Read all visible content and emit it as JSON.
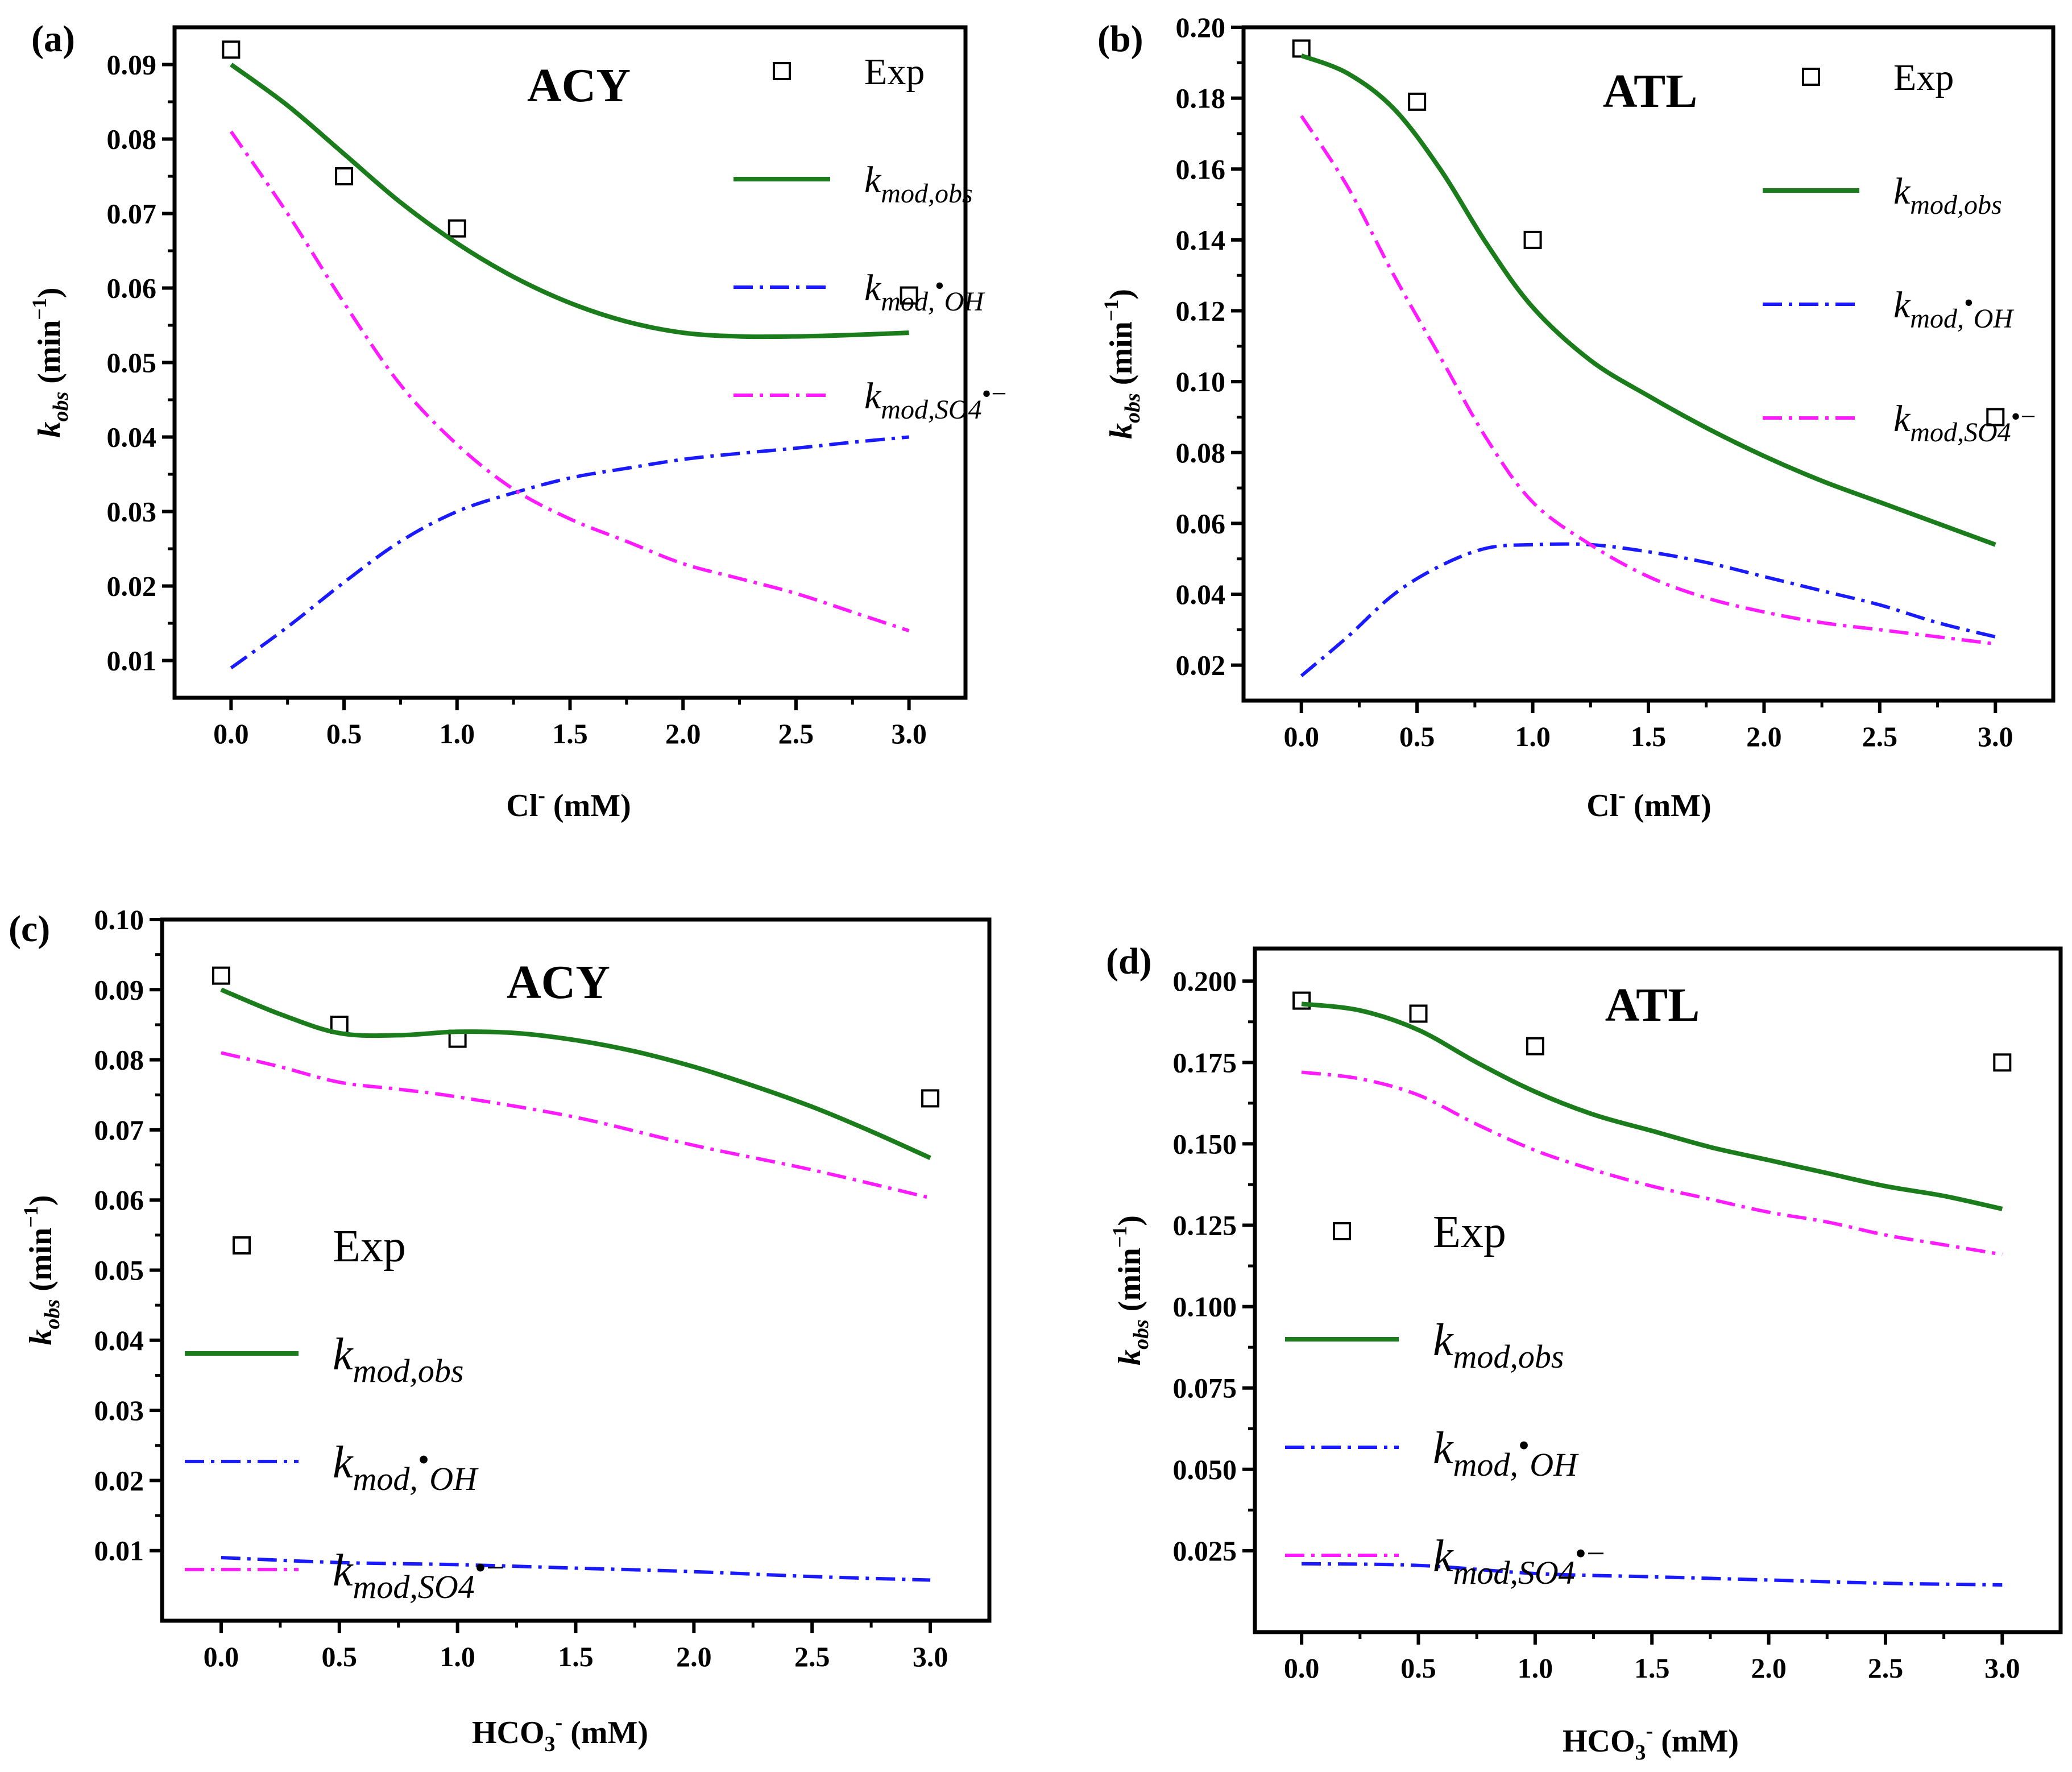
{
  "figure": {
    "description_free": true
  },
  "chart_data": [
    {
      "id": "a",
      "type": "line",
      "panel_label": "(a)",
      "title": "ACY",
      "xlabel_main": "Cl",
      "xlabel_sup": "-",
      "xlabel_rest": " (mM)",
      "ylabel_main": "k",
      "ylabel_sub": "obs",
      "ylabel_rest": " (min",
      "ylabel_sup": "−1",
      "ylabel_end": ")",
      "xlim": [
        -0.25,
        3.25
      ],
      "ylim": [
        0.005,
        0.095
      ],
      "xticks": [
        0.0,
        0.5,
        1.0,
        1.5,
        2.0,
        2.5,
        3.0
      ],
      "xtick_labels": [
        "0.0",
        "0.5",
        "1.0",
        "1.5",
        "2.0",
        "2.5",
        "3.0"
      ],
      "yticks": [
        0.01,
        0.02,
        0.03,
        0.04,
        0.05,
        0.06,
        0.07,
        0.08,
        0.09
      ],
      "ytick_labels": [
        "0.01",
        "0.02",
        "0.03",
        "0.04",
        "0.05",
        "0.06",
        "0.07",
        "0.08",
        "0.09"
      ],
      "legend_position": "top-right",
      "series": [
        {
          "name": "Exp",
          "kind": "marker",
          "x": [
            0.0,
            0.5,
            1.0,
            3.0
          ],
          "y": [
            0.092,
            0.075,
            0.068,
            0.059
          ]
        },
        {
          "name": "k_mod,obs",
          "kind": "solid",
          "color": "#1b7c1b",
          "x": [
            0.0,
            0.25,
            0.5,
            0.75,
            1.0,
            1.25,
            1.5,
            1.75,
            2.0,
            2.25,
            2.5,
            2.75,
            3.0
          ],
          "y": [
            0.09,
            0.0845,
            0.078,
            0.0715,
            0.066,
            0.0615,
            0.058,
            0.0555,
            0.054,
            0.0535,
            0.0535,
            0.0537,
            0.054
          ]
        },
        {
          "name": "k_mod,•OH",
          "kind": "dashdot",
          "color": "#1a1aff",
          "x": [
            0.0,
            0.25,
            0.5,
            0.75,
            1.0,
            1.25,
            1.5,
            1.75,
            2.0,
            2.25,
            2.5,
            2.75,
            3.0
          ],
          "y": [
            0.009,
            0.0145,
            0.0205,
            0.026,
            0.03,
            0.0325,
            0.0345,
            0.0358,
            0.037,
            0.0378,
            0.0385,
            0.0393,
            0.04
          ]
        },
        {
          "name": "k_mod,SO4•−",
          "kind": "dashdot",
          "color": "#ff1aff",
          "x": [
            0.0,
            0.25,
            0.5,
            0.75,
            1.0,
            1.25,
            1.5,
            1.75,
            2.0,
            2.25,
            2.5,
            2.75,
            3.0
          ],
          "y": [
            0.081,
            0.07,
            0.058,
            0.047,
            0.039,
            0.033,
            0.029,
            0.026,
            0.023,
            0.021,
            0.019,
            0.0165,
            0.014
          ]
        }
      ],
      "legend": [
        {
          "label": "Exp"
        },
        {
          "label_main": "k",
          "label_sub": "mod,obs"
        },
        {
          "label_main": "k",
          "label_sub": "mod,",
          "label_sup": "•",
          "label_sub2": "OH"
        },
        {
          "label_main": "k",
          "label_sub": "mod,SO4",
          "label_sup": "•−"
        }
      ]
    },
    {
      "id": "b",
      "type": "line",
      "panel_label": "(b)",
      "title": "ATL",
      "xlabel_main": "Cl",
      "xlabel_sup": "-",
      "xlabel_rest": " (mM)",
      "ylabel_main": "k",
      "ylabel_sub": "obs",
      "ylabel_rest": " (min",
      "ylabel_sup": "−1",
      "ylabel_end": ")",
      "xlim": [
        -0.25,
        3.25
      ],
      "ylim": [
        0.01,
        0.2
      ],
      "xticks": [
        0.0,
        0.5,
        1.0,
        1.5,
        2.0,
        2.5,
        3.0
      ],
      "xtick_labels": [
        "0.0",
        "0.5",
        "1.0",
        "1.5",
        "2.0",
        "2.5",
        "3.0"
      ],
      "yticks": [
        0.02,
        0.04,
        0.06,
        0.08,
        0.1,
        0.12,
        0.14,
        0.16,
        0.18,
        0.2
      ],
      "ytick_labels": [
        "0.02",
        "0.04",
        "0.06",
        "0.08",
        "0.10",
        "0.12",
        "0.14",
        "0.16",
        "0.18",
        "0.20"
      ],
      "legend_position": "top-right",
      "series": [
        {
          "name": "Exp",
          "kind": "marker",
          "x": [
            0.0,
            0.5,
            1.0,
            3.0
          ],
          "y": [
            0.194,
            0.179,
            0.14,
            0.09
          ]
        },
        {
          "name": "k_mod,obs",
          "kind": "solid",
          "color": "#1b7c1b",
          "x": [
            0.0,
            0.2,
            0.4,
            0.6,
            0.8,
            1.0,
            1.25,
            1.5,
            1.75,
            2.0,
            2.25,
            2.5,
            2.75,
            3.0
          ],
          "y": [
            0.192,
            0.187,
            0.177,
            0.16,
            0.139,
            0.121,
            0.106,
            0.096,
            0.087,
            0.079,
            0.072,
            0.066,
            0.06,
            0.054
          ]
        },
        {
          "name": "k_mod,•OH",
          "kind": "dashdot",
          "color": "#1a1aff",
          "x": [
            0.0,
            0.2,
            0.4,
            0.6,
            0.8,
            1.0,
            1.25,
            1.5,
            1.75,
            2.0,
            2.25,
            2.5,
            2.75,
            3.0
          ],
          "y": [
            0.017,
            0.028,
            0.04,
            0.048,
            0.053,
            0.054,
            0.054,
            0.052,
            0.049,
            0.045,
            0.041,
            0.037,
            0.032,
            0.028
          ]
        },
        {
          "name": "k_mod,SO4•−",
          "kind": "dashdot",
          "color": "#ff1aff",
          "x": [
            0.0,
            0.2,
            0.4,
            0.6,
            0.8,
            1.0,
            1.25,
            1.5,
            1.75,
            2.0,
            2.25,
            2.5,
            2.75,
            3.0
          ],
          "y": [
            0.175,
            0.155,
            0.13,
            0.107,
            0.084,
            0.066,
            0.054,
            0.045,
            0.039,
            0.035,
            0.032,
            0.03,
            0.028,
            0.026
          ]
        }
      ],
      "legend": [
        {
          "label": "Exp"
        },
        {
          "label_main": "k",
          "label_sub": "mod,obs"
        },
        {
          "label_main": "k",
          "label_sub": "mod,",
          "label_sup": "•",
          "label_sub2": "OH"
        },
        {
          "label_main": "k",
          "label_sub": "mod,SO4",
          "label_sup": "•−"
        }
      ]
    },
    {
      "id": "c",
      "type": "line",
      "panel_label": "(c)",
      "title": "ACY",
      "xlabel_main": "HCO",
      "xlabel_sub": "3",
      "xlabel_sup": "-",
      "xlabel_rest": " (mM)",
      "ylabel_main": "k",
      "ylabel_sub": "obs",
      "ylabel_rest": " (min",
      "ylabel_sup": "−1",
      "ylabel_end": ")",
      "xlim": [
        -0.25,
        3.25
      ],
      "ylim": [
        0.0,
        0.1
      ],
      "xticks": [
        0.0,
        0.5,
        1.0,
        1.5,
        2.0,
        2.5,
        3.0
      ],
      "xtick_labels": [
        "0.0",
        "0.5",
        "1.0",
        "1.5",
        "2.0",
        "2.5",
        "3.0"
      ],
      "yticks": [
        0.01,
        0.02,
        0.03,
        0.04,
        0.05,
        0.06,
        0.07,
        0.08,
        0.09,
        0.1
      ],
      "ytick_labels": [
        "0.01",
        "0.02",
        "0.03",
        "0.04",
        "0.05",
        "0.06",
        "0.07",
        "0.08",
        "0.09",
        "0.10"
      ],
      "legend_position": "middle-left",
      "series": [
        {
          "name": "Exp",
          "kind": "marker",
          "x": [
            0.0,
            0.5,
            1.0,
            3.0
          ],
          "y": [
            0.092,
            0.085,
            0.083,
            0.0745
          ]
        },
        {
          "name": "k_mod,obs",
          "kind": "solid",
          "color": "#1b7c1b",
          "x": [
            0.0,
            0.25,
            0.5,
            0.75,
            1.0,
            1.25,
            1.5,
            1.75,
            2.0,
            2.25,
            2.5,
            2.75,
            3.0
          ],
          "y": [
            0.09,
            0.0865,
            0.0838,
            0.0835,
            0.084,
            0.0838,
            0.0828,
            0.0812,
            0.079,
            0.0763,
            0.0733,
            0.0698,
            0.066
          ]
        },
        {
          "name": "k_mod,•OH",
          "kind": "dashdot",
          "color": "#1a1aff",
          "x": [
            0.0,
            0.5,
            1.0,
            1.5,
            2.0,
            2.5,
            3.0
          ],
          "y": [
            0.009,
            0.0083,
            0.008,
            0.0075,
            0.007,
            0.0063,
            0.0058
          ]
        },
        {
          "name": "k_mod,SO4•−",
          "kind": "dashdot",
          "color": "#ff1aff",
          "x": [
            0.0,
            0.25,
            0.5,
            0.75,
            1.0,
            1.5,
            2.0,
            2.5,
            3.0
          ],
          "y": [
            0.081,
            0.079,
            0.0768,
            0.0758,
            0.0747,
            0.0718,
            0.0678,
            0.0643,
            0.0603
          ]
        }
      ],
      "legend": [
        {
          "label": "Exp"
        },
        {
          "label_main": "k",
          "label_sub": "mod,obs"
        },
        {
          "label_main": "k",
          "label_sub": "mod,",
          "label_sup": "•",
          "label_sub2": "OH"
        },
        {
          "label_main": "k",
          "label_sub": "mod,SO4",
          "label_sup": "•−"
        }
      ]
    },
    {
      "id": "d",
      "type": "line",
      "panel_label": "(d)",
      "title": "ATL",
      "xlabel_main": "HCO",
      "xlabel_sub": "3",
      "xlabel_sup": "-",
      "xlabel_rest": " (mM)",
      "ylabel_main": "k",
      "ylabel_sub": "obs",
      "ylabel_rest": " (min",
      "ylabel_sup": "−1",
      "ylabel_end": ")",
      "xlim": [
        -0.2,
        3.25
      ],
      "ylim": [
        0.0,
        0.21
      ],
      "xticks": [
        0.0,
        0.5,
        1.0,
        1.5,
        2.0,
        2.5,
        3.0
      ],
      "xtick_labels": [
        "0.0",
        "0.5",
        "1.0",
        "1.5",
        "2.0",
        "2.5",
        "3.0"
      ],
      "yticks": [
        0.025,
        0.05,
        0.075,
        0.1,
        0.125,
        0.15,
        0.175,
        0.2
      ],
      "ytick_labels": [
        "0.025",
        "0.050",
        "0.075",
        "0.100",
        "0.125",
        "0.150",
        "0.175",
        "0.200"
      ],
      "legend_position": "middle-left",
      "series": [
        {
          "name": "Exp",
          "kind": "marker",
          "x": [
            0.0,
            0.5,
            1.0,
            3.0
          ],
          "y": [
            0.194,
            0.19,
            0.18,
            0.175
          ]
        },
        {
          "name": "k_mod,obs",
          "kind": "solid",
          "color": "#1b7c1b",
          "x": [
            0.0,
            0.25,
            0.5,
            0.75,
            1.0,
            1.25,
            1.5,
            1.75,
            2.0,
            2.25,
            2.5,
            2.75,
            3.0
          ],
          "y": [
            0.193,
            0.191,
            0.185,
            0.175,
            0.166,
            0.159,
            0.154,
            0.149,
            0.145,
            0.141,
            0.137,
            0.134,
            0.13
          ]
        },
        {
          "name": "k_mod,•OH",
          "kind": "dashdot",
          "color": "#1a1aff",
          "x": [
            0.0,
            0.5,
            1.0,
            1.5,
            2.0,
            2.5,
            3.0
          ],
          "y": [
            0.021,
            0.0205,
            0.018,
            0.017,
            0.016,
            0.015,
            0.0145
          ]
        },
        {
          "name": "k_mod,SO4•−",
          "kind": "dashdot",
          "color": "#ff1aff",
          "x": [
            0.0,
            0.25,
            0.5,
            0.75,
            1.0,
            1.25,
            1.5,
            1.75,
            2.0,
            2.25,
            2.5,
            2.75,
            3.0
          ],
          "y": [
            0.172,
            0.17,
            0.165,
            0.156,
            0.148,
            0.142,
            0.137,
            0.133,
            0.129,
            0.126,
            0.122,
            0.119,
            0.116
          ]
        }
      ],
      "legend": [
        {
          "label": "Exp"
        },
        {
          "label_main": "k",
          "label_sub": "mod,obs"
        },
        {
          "label_main": "k",
          "label_sub": "mod,",
          "label_sup": "•",
          "label_sub2": "OH"
        },
        {
          "label_main": "k",
          "label_sub": "mod,SO4",
          "label_sup": "•−"
        }
      ]
    }
  ]
}
